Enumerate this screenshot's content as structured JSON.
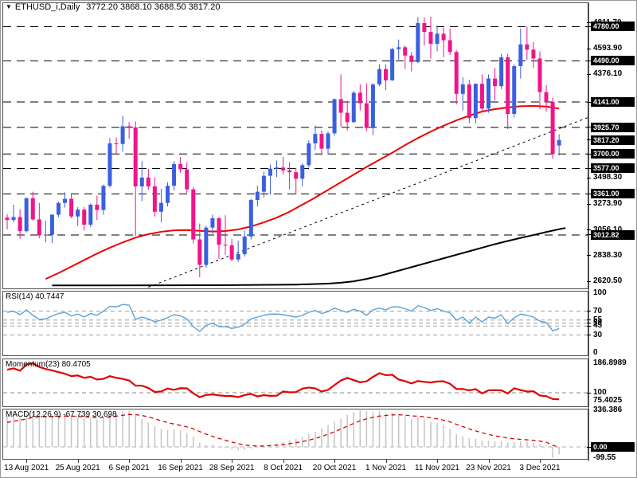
{
  "window": {
    "marker": "▼",
    "symbol": "ETHUSD_i,Daily",
    "ohlc": "3772.20 3868.10 3688.50 3817.20"
  },
  "colors": {
    "candle_up": "#3a5fe0",
    "candle_down": "#f0148c",
    "ma_fast_red": "#f00000",
    "ma_slow_black": "#000000",
    "level_line": "#000000",
    "rsi_line": "#5aa2d8",
    "momentum_line": "#e00000",
    "macd_histogram": "#c4c4c4",
    "macd_signal": "#e00000",
    "label_box_bg": "#000000",
    "label_box_fg": "#ffffff"
  },
  "chart_data": {
    "type": "candlestick",
    "title": "ETHUSD_i,Daily",
    "x_labels": [
      {
        "label": "13 Aug 2021",
        "index": 3
      },
      {
        "label": "25 Aug 2021",
        "index": 11
      },
      {
        "label": "6 Sep 2021",
        "index": 19
      },
      {
        "label": "16 Sep 2021",
        "index": 27
      },
      {
        "label": "28 Sep 2021",
        "index": 35
      },
      {
        "label": "8 Oct 2021",
        "index": 43
      },
      {
        "label": "20 Oct 2021",
        "index": 51
      },
      {
        "label": "1 Nov 2021",
        "index": 59
      },
      {
        "label": "11 Nov 2021",
        "index": 67
      },
      {
        "label": "23 Nov 2021",
        "index": 75
      },
      {
        "label": "3 Dec 2021",
        "index": 83
      }
    ],
    "candles": [
      [
        3160,
        3190,
        3060,
        3140
      ],
      [
        3140,
        3270,
        3120,
        3165
      ],
      [
        3165,
        3230,
        2980,
        3045
      ],
      [
        3045,
        3330,
        3035,
        3325
      ],
      [
        3325,
        3380,
        3135,
        3145
      ],
      [
        3145,
        3285,
        2985,
        3010
      ],
      [
        3010,
        3135,
        2950,
        3015
      ],
      [
        3015,
        3190,
        2945,
        3185
      ],
      [
        3185,
        3295,
        3165,
        3285
      ],
      [
        3285,
        3375,
        3245,
        3320
      ],
      [
        3320,
        3360,
        3155,
        3170
      ],
      [
        3170,
        3250,
        3090,
        3228
      ],
      [
        3228,
        3250,
        3050,
        3100
      ],
      [
        3100,
        3280,
        3080,
        3270
      ],
      [
        3270,
        3345,
        3140,
        3225
      ],
      [
        3225,
        3440,
        3185,
        3430
      ],
      [
        3430,
        3835,
        3415,
        3790
      ],
      [
        3790,
        3840,
        3700,
        3785
      ],
      [
        3785,
        4025,
        3720,
        3935
      ],
      [
        3935,
        3970,
        3830,
        3925
      ],
      [
        3925,
        3975,
        3005,
        3425
      ],
      [
        3425,
        3640,
        3300,
        3500
      ],
      [
        3500,
        3575,
        3395,
        3425
      ],
      [
        3425,
        3500,
        3170,
        3210
      ],
      [
        3210,
        3405,
        3120,
        3285
      ],
      [
        3285,
        3460,
        3255,
        3430
      ],
      [
        3430,
        3640,
        3390,
        3615
      ],
      [
        3615,
        3675,
        3540,
        3570
      ],
      [
        3570,
        3630,
        3370,
        3400
      ],
      [
        3400,
        3420,
        2940,
        2975
      ],
      [
        2975,
        3110,
        2655,
        2760
      ],
      [
        2760,
        3090,
        2735,
        3075
      ],
      [
        3075,
        3185,
        3025,
        3155
      ],
      [
        3155,
        3165,
        2810,
        2930
      ],
      [
        2930,
        3180,
        2845,
        2925
      ],
      [
        2925,
        2980,
        2790,
        2805
      ],
      [
        2805,
        2965,
        2785,
        2850
      ],
      [
        2850,
        3050,
        2830,
        3000
      ],
      [
        3000,
        3320,
        2975,
        3310
      ],
      [
        3310,
        3430,
        3255,
        3380
      ],
      [
        3380,
        3550,
        3330,
        3515
      ],
      [
        3515,
        3610,
        3355,
        3575
      ],
      [
        3575,
        3645,
        3505,
        3585
      ],
      [
        3585,
        3675,
        3525,
        3560
      ],
      [
        3560,
        3630,
        3400,
        3545
      ],
      [
        3545,
        3580,
        3355,
        3490
      ],
      [
        3490,
        3620,
        3425,
        3605
      ],
      [
        3605,
        3815,
        3585,
        3790
      ],
      [
        3790,
        3940,
        3735,
        3870
      ],
      [
        3870,
        3900,
        3690,
        3745
      ],
      [
        3745,
        3890,
        3695,
        3875
      ],
      [
        3875,
        4170,
        3855,
        4165
      ],
      [
        4165,
        4375,
        3930,
        4050
      ],
      [
        4050,
        4150,
        3900,
        3970
      ],
      [
        3970,
        4235,
        3965,
        4220
      ],
      [
        4220,
        4290,
        4070,
        4130
      ],
      [
        4130,
        4300,
        3895,
        3920
      ],
      [
        3920,
        4300,
        3860,
        4290
      ],
      [
        4290,
        4460,
        4275,
        4420
      ],
      [
        4420,
        4460,
        4240,
        4325
      ],
      [
        4325,
        4600,
        4320,
        4590
      ],
      [
        4590,
        4670,
        4500,
        4605
      ],
      [
        4605,
        4620,
        4420,
        4535
      ],
      [
        4535,
        4565,
        4400,
        4480
      ],
      [
        4480,
        4860,
        4470,
        4810
      ],
      [
        4810,
        4860,
        4620,
        4735
      ],
      [
        4735,
        4865,
        4510,
        4635
      ],
      [
        4635,
        4790,
        4570,
        4720
      ],
      [
        4720,
        4770,
        4520,
        4665
      ],
      [
        4665,
        4765,
        4540,
        4565
      ],
      [
        4565,
        4580,
        4120,
        4210
      ],
      [
        4210,
        4350,
        4070,
        4290
      ],
      [
        4290,
        4330,
        3960,
        4005
      ],
      [
        4005,
        4300,
        3960,
        4295
      ],
      [
        4295,
        4375,
        4060,
        4085
      ],
      [
        4085,
        4375,
        4050,
        4340
      ],
      [
        4340,
        4430,
        4155,
        4275
      ],
      [
        4275,
        4550,
        4250,
        4520
      ],
      [
        4520,
        4550,
        3910,
        4040
      ],
      [
        4040,
        4460,
        4010,
        4445
      ],
      [
        4445,
        4765,
        4340,
        4630
      ],
      [
        4630,
        4780,
        4500,
        4585
      ],
      [
        4585,
        4650,
        4430,
        4510
      ],
      [
        4510,
        4570,
        4080,
        4225
      ],
      [
        4225,
        4285,
        4060,
        4141
      ],
      [
        4141,
        4175,
        3660,
        3700
      ],
      [
        3772.2,
        3868.1,
        3688.5,
        3817.2
      ]
    ],
    "level_lines": [
      4780,
      4490,
      4141,
      3925.7,
      3700,
      3577,
      3361,
      3012.82
    ],
    "price_boxes": [
      [
        "4780.00",
        4780
      ],
      [
        "4490.00",
        4490
      ],
      [
        "4141.00",
        4141
      ],
      [
        "3925.70",
        3925.7
      ],
      [
        "3817.20",
        3817.2
      ],
      [
        "3700.00",
        3700
      ],
      [
        "3577.00",
        3577
      ],
      [
        "3361.00",
        3361
      ],
      [
        "3012.82",
        3012.82
      ]
    ],
    "axis_ticks": [
      [
        "4811.70",
        4811.7
      ],
      [
        "4593.90",
        4593.9
      ],
      [
        "4376.10",
        4376.1
      ],
      [
        "3498.30",
        3498.3
      ],
      [
        "3273.90",
        3273.9
      ],
      [
        "3056.10",
        3056.1
      ],
      [
        "2838.30",
        2838.3
      ],
      [
        "2620.50",
        2620.5
      ]
    ],
    "red_ma": [
      [
        6,
        2640
      ],
      [
        8,
        2690
      ],
      [
        10,
        2745
      ],
      [
        12,
        2800
      ],
      [
        14,
        2855
      ],
      [
        16,
        2905
      ],
      [
        18,
        2950
      ],
      [
        20,
        2990
      ],
      [
        22,
        3020
      ],
      [
        24,
        3040
      ],
      [
        26,
        3052
      ],
      [
        28,
        3055
      ],
      [
        30,
        3048
      ],
      [
        32,
        3042
      ],
      [
        34,
        3046
      ],
      [
        36,
        3060
      ],
      [
        38,
        3085
      ],
      [
        40,
        3120
      ],
      [
        42,
        3160
      ],
      [
        44,
        3210
      ],
      [
        46,
        3270
      ],
      [
        48,
        3330
      ],
      [
        50,
        3395
      ],
      [
        52,
        3460
      ],
      [
        54,
        3525
      ],
      [
        56,
        3590
      ],
      [
        58,
        3650
      ],
      [
        60,
        3710
      ],
      [
        62,
        3775
      ],
      [
        64,
        3835
      ],
      [
        66,
        3890
      ],
      [
        68,
        3940
      ],
      [
        70,
        3985
      ],
      [
        72,
        4025
      ],
      [
        74,
        4060
      ],
      [
        76,
        4080
      ],
      [
        78,
        4095
      ],
      [
        80,
        4105
      ],
      [
        82,
        4108
      ],
      [
        84,
        4102
      ],
      [
        86,
        4085
      ]
    ],
    "black_ma": [
      [
        7,
        2585
      ],
      [
        15,
        2585
      ],
      [
        25,
        2586
      ],
      [
        35,
        2588
      ],
      [
        45,
        2592
      ],
      [
        50,
        2600
      ],
      [
        52,
        2608
      ],
      [
        54,
        2620
      ],
      [
        56,
        2640
      ],
      [
        58,
        2665
      ],
      [
        60,
        2695
      ],
      [
        62,
        2725
      ],
      [
        64,
        2755
      ],
      [
        66,
        2785
      ],
      [
        68,
        2815
      ],
      [
        70,
        2845
      ],
      [
        72,
        2875
      ],
      [
        74,
        2905
      ],
      [
        76,
        2935
      ],
      [
        78,
        2962
      ],
      [
        80,
        2988
      ],
      [
        82,
        3012
      ],
      [
        84,
        3038
      ],
      [
        86,
        3062
      ],
      [
        87,
        3072
      ]
    ],
    "trendline": {
      "from": [
        22,
        2570
      ],
      "to": [
        91,
        4020
      ]
    },
    "rsi": {
      "label": "RSI(14) 40.7447",
      "period": 14,
      "current": 40.7447,
      "levels": [
        70,
        55,
        50,
        45,
        30
      ],
      "axis_labels": [
        [
          "100",
          100
        ],
        [
          "70",
          70
        ],
        [
          "55",
          55
        ],
        [
          "50",
          50
        ],
        [
          "45",
          45
        ],
        [
          "30",
          30
        ],
        [
          "0",
          0
        ]
      ],
      "values": [
        68,
        70,
        64,
        72,
        63,
        56,
        57,
        62,
        66,
        68,
        62,
        65,
        60,
        66,
        63,
        70,
        78,
        77,
        81,
        80,
        56,
        60,
        57,
        52,
        55,
        59,
        64,
        62,
        57,
        44,
        36,
        46,
        50,
        44,
        44,
        41,
        43,
        48,
        57,
        60,
        63,
        65,
        65,
        64,
        62,
        60,
        63,
        68,
        71,
        66,
        69,
        75,
        71,
        68,
        73,
        70,
        63,
        72,
        75,
        72,
        77,
        77,
        74,
        70,
        79,
        76,
        71,
        74,
        70,
        67,
        55,
        60,
        50,
        60,
        52,
        60,
        58,
        64,
        49,
        59,
        65,
        63,
        60,
        53,
        51,
        37,
        40.74
      ]
    },
    "momentum": {
      "label": "Momentum(23) 80.4705",
      "period": 23,
      "current": 80.4705,
      "levels": [
        100
      ],
      "axis_labels": [
        [
          "186.8989",
          186.8989
        ],
        [
          "100",
          100
        ],
        [
          "75.4025",
          75.4025
        ]
      ],
      "values": [
        168,
        172,
        165,
        183,
        186.9,
        176,
        170,
        166,
        161,
        156,
        149,
        151,
        144,
        147,
        139,
        141,
        149,
        144,
        141,
        136,
        121,
        121,
        114,
        102.2,
        103.8,
        112.6,
        108.7,
        113.5,
        113,
        98.7,
        86.7,
        93.6,
        95,
        92.4,
        90.6,
        90.5,
        87.2,
        93,
        96.5,
        89.2,
        92.9,
        90.9,
        91.3,
        103.9,
        101.3,
        101.9,
        112.3,
        115.4,
        112.8,
        103.6,
        108.5,
        122.5,
        136.1,
        143.8,
        137.2,
        130.9,
        133.8,
        146.7,
        157.6,
        151.8,
        153,
        139.1,
        134.2,
        127.5,
        134.5,
        132.1,
        130.2,
        133.1,
        133.7,
        126.6,
        111.1,
        110.9,
        106.9,
        110.8,
        98.1,
        107.2,
        107.7,
        107.1,
        97.8,
        113.4,
        107.9,
        103.7,
        104.3,
        92,
        89.9,
        81.6,
        80.47
      ]
    },
    "macd": {
      "label": "MACD(12,26,9) -67.739 30.698",
      "params": "12,26,9",
      "current_macd": -67.739,
      "current_signal": 30.698,
      "levels": [
        0
      ],
      "axis_labels": [
        [
          "336.386",
          336.386
        ],
        [
          "0.00",
          0
        ],
        [
          "-99.55",
          -99.55
        ]
      ],
      "histogram": [
        280,
        295,
        270,
        310,
        320,
        300,
        285,
        280,
        288,
        295,
        280,
        272,
        258,
        262,
        252,
        265,
        300,
        310,
        325,
        330,
        290,
        255,
        225,
        190,
        165,
        155,
        158,
        150,
        130,
        95,
        40,
        20,
        18,
        5,
        -8,
        -20,
        -30,
        -28,
        -15,
        -5,
        10,
        25,
        35,
        45,
        60,
        75,
        90,
        115,
        140,
        170,
        200,
        230,
        260,
        295,
        320,
        336.4,
        330,
        325,
        330,
        310,
        315,
        300,
        280,
        255,
        270,
        255,
        230,
        220,
        200,
        165,
        120,
        100,
        80,
        75,
        60,
        55,
        50,
        55,
        40,
        45,
        50,
        48,
        42,
        25,
        5,
        -99.55,
        -67.74
      ]
    }
  }
}
